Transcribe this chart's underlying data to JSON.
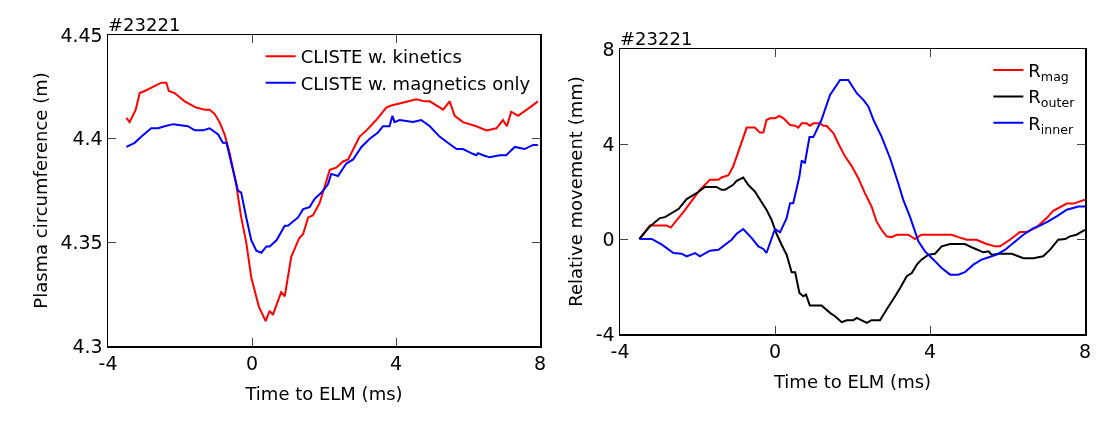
{
  "chart_data": [
    {
      "type": "line",
      "title": "#23221",
      "xlabel": "Time to ELM (ms)",
      "ylabel": "Plasma circumference (m)",
      "xlim": [
        -4,
        8
      ],
      "xticks": [
        -4,
        0,
        4,
        8
      ],
      "ylim": [
        4.3,
        4.45
      ],
      "yticks": [
        4.3,
        4.35,
        4.4,
        4.45
      ],
      "grid": false,
      "legend": "top right",
      "line_style": "solid",
      "series": [
        {
          "name": "CLISTE w. kinetics",
          "color": "#ff0000",
          "x": [
            -3.49,
            -3.4,
            -3.23,
            -3.12,
            -2.98,
            -2.75,
            -2.52,
            -2.38,
            -2.31,
            -2.15,
            -1.87,
            -1.55,
            -1.31,
            -1.18,
            -1.04,
            -0.9,
            -0.76,
            -0.62,
            -0.44,
            -0.3,
            -0.16,
            -0.02,
            0.19,
            0.38,
            0.49,
            0.58,
            0.81,
            0.91,
            1.09,
            1.31,
            1.42,
            1.56,
            1.69,
            1.88,
            2.16,
            2.34,
            2.53,
            2.67,
            2.99,
            3.18,
            3.45,
            3.73,
            3.87,
            4.1,
            4.56,
            4.8,
            4.94,
            5.31,
            5.49,
            5.63,
            5.86,
            6.23,
            6.51,
            6.79,
            6.97,
            7.08,
            7.2,
            7.39,
            7.71,
            7.94
          ],
          "values": [
            4.41,
            4.408,
            4.414,
            4.422,
            4.423,
            4.425,
            4.427,
            4.427,
            4.423,
            4.422,
            4.418,
            4.415,
            4.414,
            4.414,
            4.412,
            4.408,
            4.402,
            4.393,
            4.378,
            4.362,
            4.35,
            4.333,
            4.319,
            4.312,
            4.317,
            4.315,
            4.326,
            4.324,
            4.343,
            4.352,
            4.354,
            4.362,
            4.363,
            4.369,
            4.385,
            4.386,
            4.389,
            4.39,
            4.401,
            4.404,
            4.409,
            4.415,
            4.416,
            4.417,
            4.419,
            4.418,
            4.418,
            4.414,
            4.418,
            4.411,
            4.408,
            4.406,
            4.404,
            4.405,
            4.409,
            4.406,
            4.413,
            4.411,
            4.415,
            4.418
          ]
        },
        {
          "name": "CLISTE w. magnetics only",
          "color": "#0000ff",
          "x": [
            -3.49,
            -3.26,
            -3.07,
            -2.8,
            -2.61,
            -2.43,
            -2.19,
            -1.78,
            -1.59,
            -1.36,
            -1.18,
            -0.94,
            -0.81,
            -0.71,
            -0.57,
            -0.39,
            -0.3,
            -0.16,
            -0.02,
            0.12,
            0.26,
            0.4,
            0.49,
            0.68,
            0.91,
            1.0,
            1.14,
            1.28,
            1.42,
            1.6,
            1.74,
            1.93,
            2.11,
            2.2,
            2.39,
            2.62,
            2.81,
            3.04,
            3.27,
            3.5,
            3.64,
            3.82,
            3.9,
            3.96,
            4.1,
            4.47,
            4.7,
            4.94,
            5.21,
            5.44,
            5.68,
            5.86,
            6.09,
            6.23,
            6.28,
            6.42,
            6.6,
            6.88,
            7.06,
            7.3,
            7.57,
            7.81,
            7.94
          ],
          "values": [
            4.396,
            4.398,
            4.401,
            4.405,
            4.405,
            4.406,
            4.407,
            4.406,
            4.404,
            4.404,
            4.405,
            4.402,
            4.398,
            4.398,
            4.388,
            4.375,
            4.374,
            4.362,
            4.351,
            4.346,
            4.345,
            4.348,
            4.348,
            4.351,
            4.358,
            4.358,
            4.36,
            4.362,
            4.366,
            4.367,
            4.371,
            4.374,
            4.378,
            4.383,
            4.382,
            4.388,
            4.39,
            4.396,
            4.4,
            4.403,
            4.406,
            4.406,
            4.411,
            4.408,
            4.409,
            4.408,
            4.409,
            4.406,
            4.401,
            4.398,
            4.395,
            4.395,
            4.393,
            4.392,
            4.393,
            4.392,
            4.391,
            4.392,
            4.392,
            4.396,
            4.395,
            4.397,
            4.397
          ]
        }
      ]
    },
    {
      "type": "line",
      "title": "#23221",
      "xlabel": "Time to ELM (ms)",
      "ylabel": "Relative movement (mm)",
      "xlim": [
        -4,
        8
      ],
      "xticks": [
        -4,
        0,
        4,
        8
      ],
      "ylim": [
        -4,
        8
      ],
      "yticks": [
        -4,
        0,
        4,
        8
      ],
      "grid": false,
      "legend": "top right",
      "line_style": "solid",
      "series": [
        {
          "name": "R$_{mag}$",
          "color": "#ff0000",
          "x": [
            -3.5,
            -3.23,
            -2.8,
            -2.69,
            -2.32,
            -1.94,
            -1.68,
            -1.46,
            -1.38,
            -1.2,
            -1.08,
            -0.73,
            -0.52,
            -0.39,
            -0.3,
            -0.22,
            -0.13,
            0,
            0.11,
            0.22,
            0.39,
            0.52,
            0.6,
            0.69,
            0.82,
            0.9,
            0.99,
            1.16,
            1.25,
            1.33,
            1.51,
            1.63,
            1.81,
            1.98,
            2.15,
            2.32,
            2.49,
            2.62,
            2.75,
            2.88,
            3.01,
            3.14,
            3.44,
            3.61,
            3.78,
            4.09,
            4.56,
            4.73,
            4.95,
            5.2,
            5.46,
            5.68,
            5.81,
            6.06,
            6.32,
            6.49,
            6.75,
            7.01,
            7.18,
            7.53,
            7.7,
            8.0
          ],
          "values": [
            0,
            0.57,
            0.57,
            0.48,
            1.23,
            2.07,
            2.49,
            2.49,
            2.59,
            2.69,
            3.05,
            4.69,
            4.69,
            4.48,
            4.48,
            5.01,
            5.08,
            5.08,
            5.18,
            5.08,
            4.8,
            4.77,
            4.69,
            4.87,
            4.87,
            4.77,
            4.87,
            4.87,
            4.77,
            4.77,
            4.45,
            4.03,
            3.47,
            3.07,
            2.56,
            1.93,
            1.37,
            0.74,
            0.39,
            0.11,
            0.08,
            0.18,
            0.18,
            0,
            0.18,
            0.18,
            0.18,
            0.08,
            -0.03,
            -0.03,
            -0.21,
            -0.31,
            -0.31,
            -0.03,
            0.29,
            0.29,
            0.49,
            0.88,
            1.19,
            1.49,
            1.49,
            1.65
          ]
        },
        {
          "name": "R$_{outer}$",
          "color": "#000000",
          "x": [
            -3.5,
            -3.23,
            -2.97,
            -2.84,
            -2.49,
            -2.28,
            -1.98,
            -1.81,
            -1.51,
            -1.38,
            -1.29,
            -1.08,
            -0.99,
            -0.82,
            -0.69,
            -0.52,
            -0.34,
            -0.22,
            -0.09,
            0.04,
            0.17,
            0.3,
            0.43,
            0.52,
            0.63,
            0.73,
            0.8,
            0.9,
            1.2,
            1.42,
            1.55,
            1.72,
            1.85,
            2.02,
            2.11,
            2.37,
            2.49,
            2.71,
            2.88,
            3.1,
            3.23,
            3.4,
            3.53,
            3.66,
            3.78,
            3.96,
            4.13,
            4.3,
            4.52,
            4.9,
            5.12,
            5.38,
            5.51,
            5.59,
            5.81,
            6.11,
            6.41,
            6.67,
            6.92,
            7.1,
            7.31,
            7.49,
            7.61,
            7.78,
            8.0
          ],
          "values": [
            0,
            0.53,
            0.88,
            0.92,
            1.26,
            1.68,
            1.98,
            2.19,
            2.19,
            2.07,
            2.07,
            2.28,
            2.45,
            2.59,
            2.28,
            2.0,
            1.54,
            1.23,
            0.81,
            0.22,
            -0.24,
            -0.66,
            -1.4,
            -1.4,
            -2.27,
            -2.41,
            -2.34,
            -2.8,
            -2.8,
            -3.11,
            -3.25,
            -3.5,
            -3.42,
            -3.42,
            -3.32,
            -3.53,
            -3.42,
            -3.42,
            -2.97,
            -2.41,
            -2.06,
            -1.57,
            -1.43,
            -1.08,
            -0.87,
            -0.66,
            -0.62,
            -0.31,
            -0.21,
            -0.21,
            -0.38,
            -0.56,
            -0.52,
            -0.66,
            -0.62,
            -0.62,
            -0.81,
            -0.81,
            -0.73,
            -0.45,
            -0.03,
            0,
            0.11,
            0.18,
            0.39
          ]
        },
        {
          "name": "R$_{inner}$",
          "color": "#0000ff",
          "x": [
            -3.5,
            -3.18,
            -2.92,
            -2.62,
            -2.41,
            -2.28,
            -2.06,
            -1.94,
            -1.68,
            -1.46,
            -1.12,
            -0.99,
            -0.82,
            -0.6,
            -0.43,
            -0.3,
            -0.22,
            0,
            0.13,
            0.3,
            0.39,
            0.47,
            0.63,
            0.69,
            0.77,
            0.89,
            0.99,
            1.2,
            1.42,
            1.68,
            1.89,
            2.11,
            2.28,
            2.41,
            2.54,
            2.75,
            2.97,
            3.18,
            3.31,
            3.48,
            3.7,
            3.87,
            4.09,
            4.3,
            4.52,
            4.73,
            4.9,
            5.12,
            5.33,
            5.46,
            5.72,
            5.94,
            6.15,
            6.41,
            6.67,
            6.84,
            7.05,
            7.27,
            7.53,
            7.83,
            8.0
          ],
          "values": [
            0,
            0,
            -0.24,
            -0.59,
            -0.62,
            -0.73,
            -0.59,
            -0.73,
            -0.49,
            -0.45,
            -0.03,
            0.22,
            0.42,
            0.04,
            -0.31,
            -0.42,
            -0.59,
            0.42,
            0.28,
            0.88,
            1.51,
            1.51,
            2.63,
            3.31,
            3.19,
            4.29,
            4.29,
            5.02,
            6.07,
            6.7,
            6.7,
            6.14,
            5.86,
            5.58,
            5.02,
            4.31,
            3.4,
            2.35,
            1.65,
            0.95,
            -0.1,
            -0.52,
            -0.87,
            -1.22,
            -1.5,
            -1.5,
            -1.4,
            -1.08,
            -0.87,
            -0.8,
            -0.66,
            -0.45,
            -0.17,
            0.18,
            0.46,
            0.56,
            0.74,
            0.95,
            1.23,
            1.37,
            1.37
          ]
        }
      ]
    }
  ]
}
